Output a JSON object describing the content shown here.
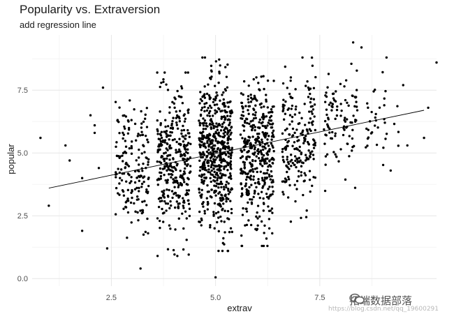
{
  "chart_data": {
    "type": "scatter",
    "title": "Popularity vs. Extraversion",
    "subtitle": "add regression line",
    "xlabel": "extrav",
    "ylabel": "popular",
    "xlim": [
      0.6,
      10.3
    ],
    "ylim": [
      -0.3,
      9.7
    ],
    "x_ticks": [
      2.5,
      5.0,
      7.5
    ],
    "x_tick_labels": [
      "2.5",
      "5.0",
      "7.5"
    ],
    "y_ticks": [
      0.0,
      2.5,
      5.0,
      7.5
    ],
    "y_tick_labels": [
      "0.0",
      "2.5",
      "5.0",
      "7.5"
    ],
    "grid": true,
    "regression_line": {
      "x": [
        1.0,
        10.0
      ],
      "y": [
        3.6,
        6.7
      ]
    },
    "point_color": "#000000",
    "outlier_points": [
      {
        "x": 0.8,
        "y": 5.6
      },
      {
        "x": 1.0,
        "y": 2.9
      },
      {
        "x": 1.4,
        "y": 5.3
      },
      {
        "x": 1.5,
        "y": 4.7
      },
      {
        "x": 1.8,
        "y": 4.0
      },
      {
        "x": 1.8,
        "y": 1.9
      },
      {
        "x": 2.0,
        "y": 6.5
      },
      {
        "x": 2.1,
        "y": 5.8
      },
      {
        "x": 2.2,
        "y": 4.4
      },
      {
        "x": 2.3,
        "y": 7.6
      },
      {
        "x": 2.4,
        "y": 1.2
      },
      {
        "x": 2.1,
        "y": 6.1
      },
      {
        "x": 3.2,
        "y": 0.4
      },
      {
        "x": 5.0,
        "y": 0.05
      },
      {
        "x": 8.3,
        "y": 9.4
      },
      {
        "x": 8.5,
        "y": 9.2
      },
      {
        "x": 9.1,
        "y": 8.8
      },
      {
        "x": 10.3,
        "y": 8.6
      },
      {
        "x": 10.0,
        "y": 5.6
      },
      {
        "x": 10.1,
        "y": 6.8
      },
      {
        "x": 9.5,
        "y": 7.7
      },
      {
        "x": 9.2,
        "y": 4.3
      },
      {
        "x": 9.6,
        "y": 5.3
      }
    ],
    "clusters": [
      {
        "x_center": 3.0,
        "count": 170,
        "y_min": 1.4,
        "y_max": 7.6
      },
      {
        "x_center": 4.0,
        "count": 340,
        "y_min": 0.9,
        "y_max": 8.2
      },
      {
        "x_center": 5.0,
        "count": 580,
        "y_min": 1.1,
        "y_max": 8.8
      },
      {
        "x_center": 6.0,
        "count": 420,
        "y_min": 1.3,
        "y_max": 8.5
      },
      {
        "x_center": 7.0,
        "count": 210,
        "y_min": 2.1,
        "y_max": 8.8
      },
      {
        "x_center": 8.0,
        "count": 100,
        "y_min": 3.3,
        "y_max": 9.0
      },
      {
        "x_center": 9.0,
        "count": 35,
        "y_min": 4.1,
        "y_max": 8.3
      }
    ]
  },
  "watermark": {
    "text": "拓端数据部落",
    "url": "https://blog.csdn.net/qq_19600291"
  }
}
